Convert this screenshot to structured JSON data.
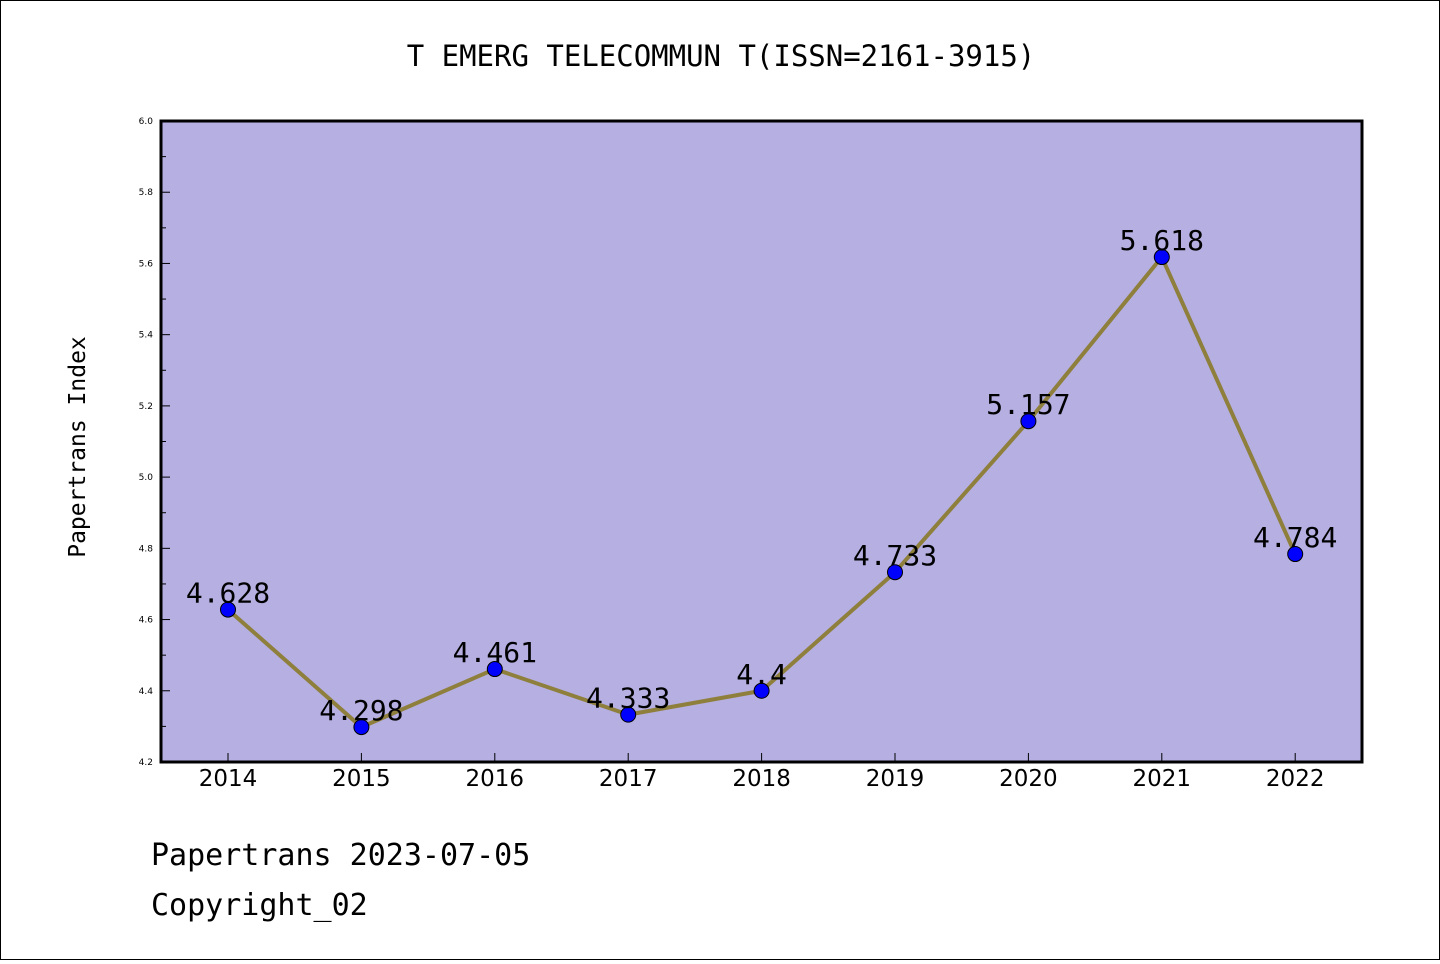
{
  "chart_data": {
    "type": "line",
    "title": "T EMERG TELECOMMUN T(ISSN=2161-3915)",
    "xlabel": "",
    "ylabel": "Papertrans Index",
    "ylim": [
      4.2,
      6.0
    ],
    "yticks": [
      "4.2",
      "4.4",
      "4.6",
      "4.8",
      "5.0",
      "5.2",
      "5.4",
      "5.6",
      "5.8",
      "6.0"
    ],
    "categories": [
      "2014",
      "2015",
      "2016",
      "2017",
      "2018",
      "2019",
      "2020",
      "2021",
      "2022"
    ],
    "values": [
      4.628,
      4.298,
      4.461,
      4.333,
      4.4,
      4.733,
      5.157,
      5.618,
      4.784
    ],
    "value_labels": [
      "4.628",
      "4.298",
      "4.461",
      "4.333",
      "4.4",
      "4.733",
      "5.157",
      "5.618",
      "4.784"
    ],
    "grid": false,
    "colors": {
      "plot_background": "#b5afe2",
      "line": "#8f7f3c",
      "marker": "#0000ff"
    }
  },
  "footer": {
    "line1": "Papertrans 2023-07-05",
    "line2": "Copyright_02"
  }
}
